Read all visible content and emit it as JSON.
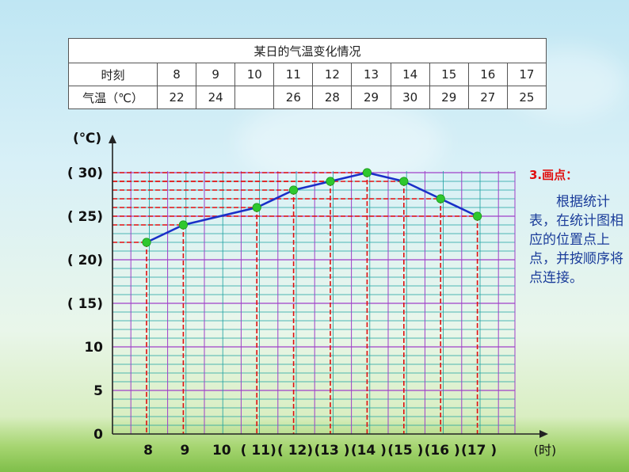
{
  "table": {
    "title": "某日的气温变化情况",
    "row1_label": "时刻",
    "row2_label": "气温（℃）",
    "times": [
      "8",
      "9",
      "10",
      "11",
      "12",
      "13",
      "14",
      "15",
      "16",
      "17"
    ],
    "temps": [
      "22",
      "24",
      "",
      "26",
      "28",
      "29",
      "30",
      "29",
      "27",
      "25"
    ]
  },
  "note": {
    "title": "3.画点：",
    "body": "根据统计表，在统计图相应的位置点上点，并按顺序将点连接。"
  },
  "chart_data": {
    "type": "line",
    "y_unit_label": "(℃)",
    "x_unit_label": "(时)",
    "ylim": [
      0,
      31
    ],
    "y_tick_labels": [
      {
        "value": 0,
        "label": "0"
      },
      {
        "value": 5,
        "label": "5"
      },
      {
        "value": 10,
        "label": "10"
      },
      {
        "value": 15,
        "label": "( 15)"
      },
      {
        "value": 20,
        "label": "( 20)"
      },
      {
        "value": 25,
        "label": "( 25)"
      },
      {
        "value": 30,
        "label": "( 30)"
      }
    ],
    "x": [
      8,
      9,
      10,
      11,
      12,
      13,
      14,
      15,
      16,
      17
    ],
    "x_tick_labels": [
      "8",
      "9",
      "10",
      "( 11)",
      "( 12)",
      "(13 )",
      "(14 )",
      "(15 )",
      "(16 )",
      "(17 )"
    ],
    "points": [
      {
        "x": 8,
        "y": 22
      },
      {
        "x": 9,
        "y": 24
      },
      {
        "x": 11,
        "y": 26
      },
      {
        "x": 12,
        "y": 28
      },
      {
        "x": 13,
        "y": 29
      },
      {
        "x": 14,
        "y": 30
      },
      {
        "x": 15,
        "y": 29
      },
      {
        "x": 16,
        "y": 27
      },
      {
        "x": 17,
        "y": 25
      }
    ],
    "grid": true,
    "colors": {
      "grid_minor": "#1aa0a0",
      "grid_major": "#a040c8",
      "guide": "#e01010",
      "line": "#1a30c8",
      "point": "#2ec82e",
      "axis": "#222222",
      "tick_label": "#111111"
    }
  }
}
